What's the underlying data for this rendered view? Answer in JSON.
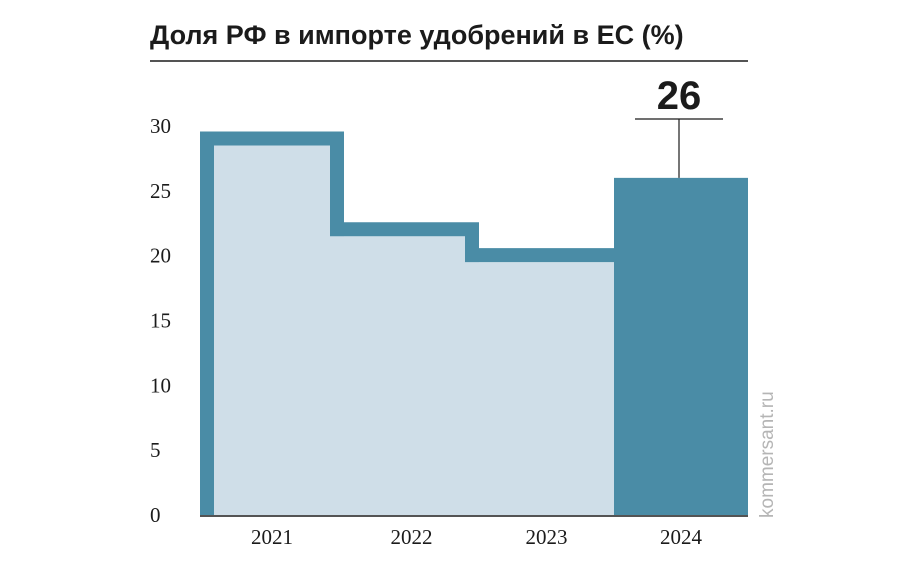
{
  "chart_data": {
    "type": "bar",
    "title": "Доля РФ в импорте удобрений в ЕС (%)",
    "categories": [
      "2021",
      "2022",
      "2023",
      "2024"
    ],
    "series": [
      {
        "values": [
          28.5,
          21.5,
          19.5,
          26
        ]
      }
    ],
    "yticks": [
      "0",
      "5",
      "10",
      "15",
      "20",
      "25",
      "30"
    ],
    "ylim": [
      0,
      30
    ],
    "annotation": {
      "category": "2024",
      "value": 26,
      "label": "26"
    },
    "grid": false,
    "legend": "none"
  },
  "colors": {
    "outline": "#4a8ca6",
    "fill_light": "#cfdee8",
    "highlight": "#4a8ca6",
    "text": "#1b1b1b",
    "watermark": "#b5b5b5"
  },
  "watermark": "kommersant.ru"
}
